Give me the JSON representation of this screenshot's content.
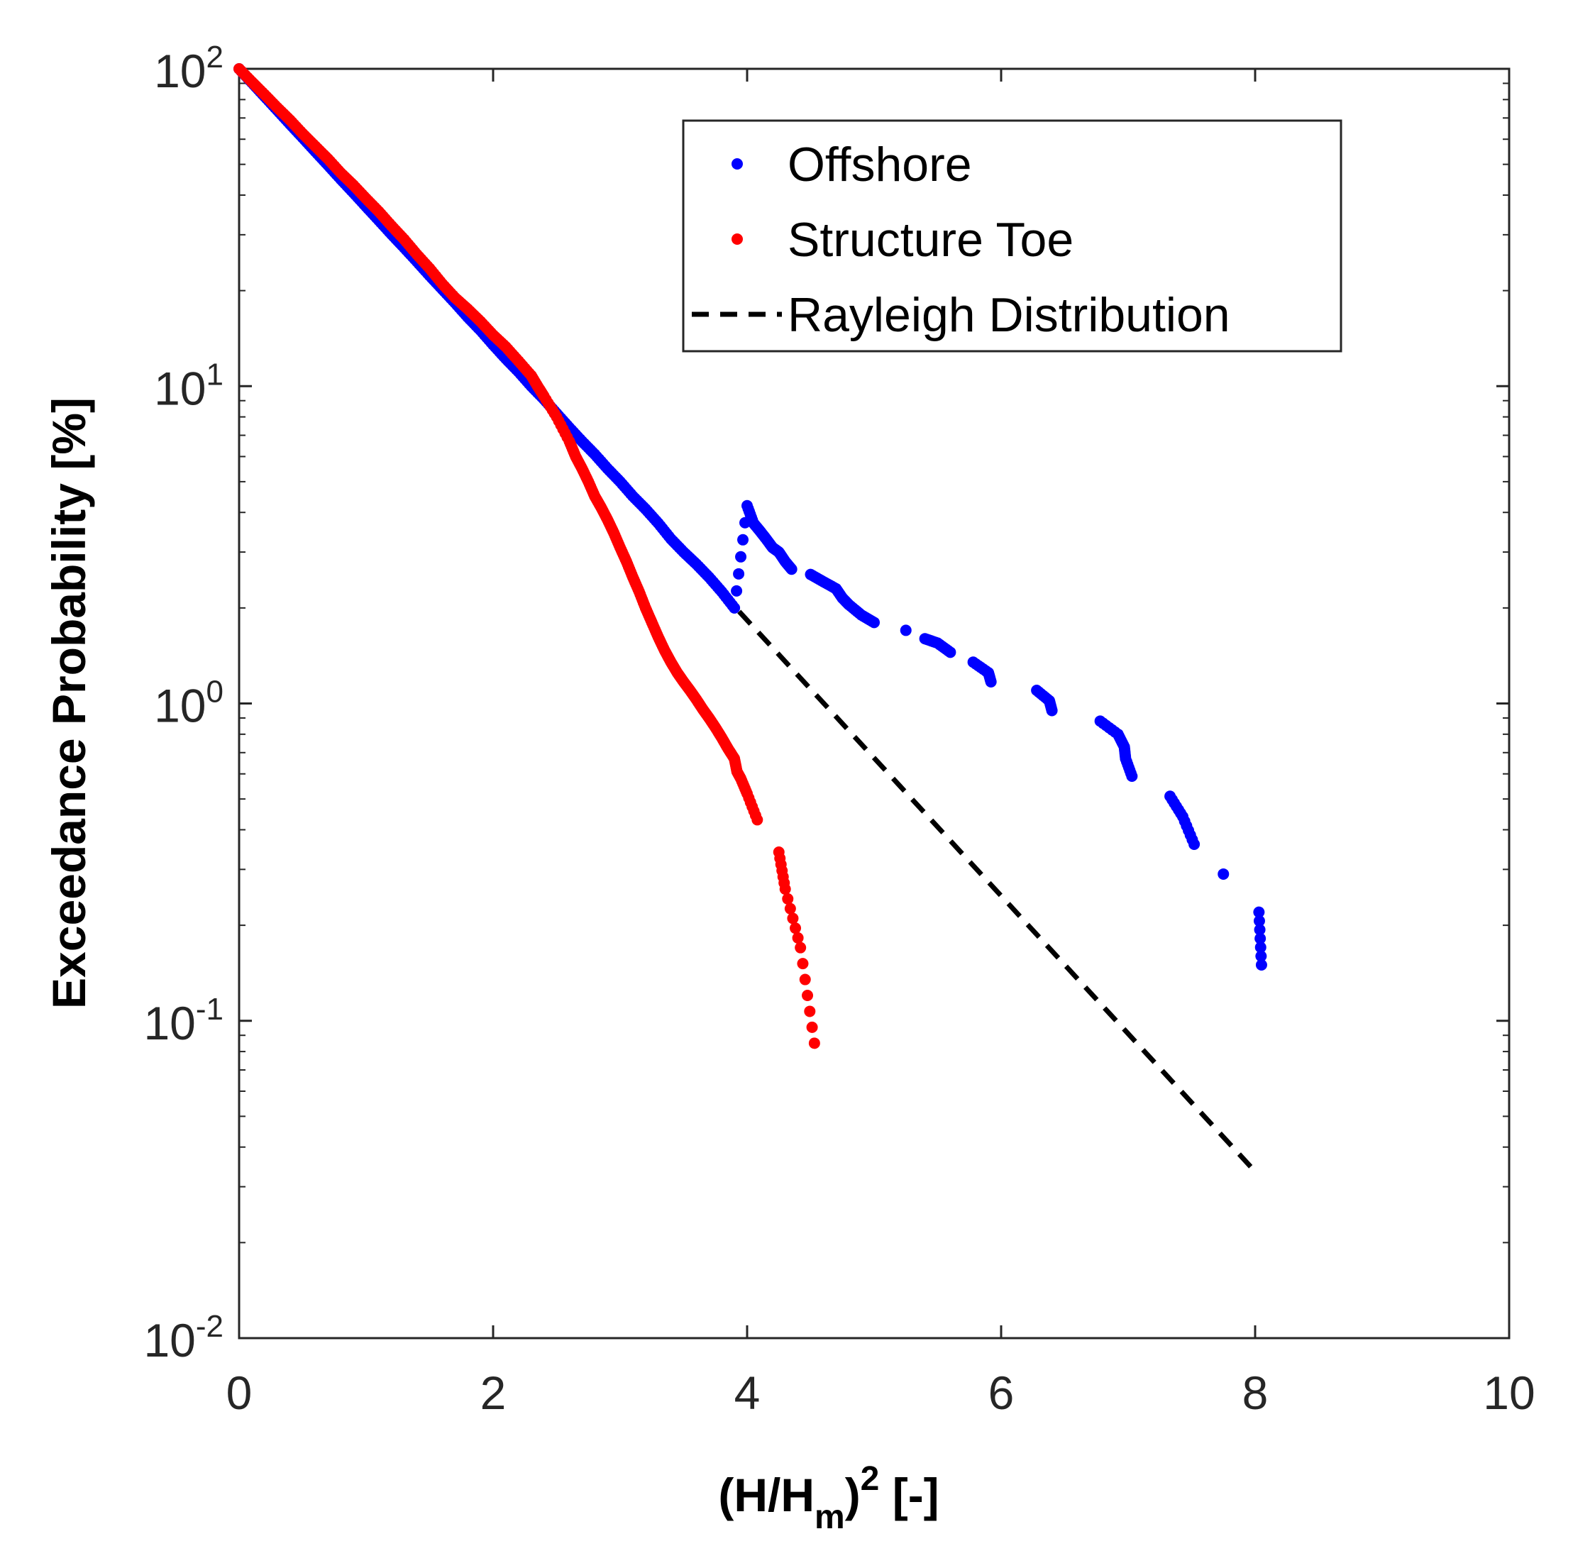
{
  "chart_data": {
    "type": "scatter",
    "title": "",
    "xlabel": {
      "main": "(H/H",
      "sub": "m",
      "close": ")",
      "sup": "2",
      "tail": " [-]"
    },
    "ylabel": "Exceedance Probability [%]",
    "xlim": [
      0,
      10
    ],
    "ylim": [
      0.01,
      100
    ],
    "yscale": "log",
    "x_ticks": [
      0,
      2,
      4,
      6,
      8,
      10
    ],
    "x_tick_labels": [
      "0",
      "2",
      "4",
      "6",
      "8",
      "10"
    ],
    "y_ticks": [
      0.01,
      0.1,
      1,
      10,
      100
    ],
    "y_tick_labels": [
      {
        "base": "10",
        "exp": "-2"
      },
      {
        "base": "10",
        "exp": "-1"
      },
      {
        "base": "10",
        "exp": "0"
      },
      {
        "base": "10",
        "exp": "1"
      },
      {
        "base": "10",
        "exp": "2"
      }
    ],
    "legend_position": "top-right",
    "series": [
      {
        "name": "Offshore",
        "style": "dots",
        "color": "#0000ff",
        "x": [
          0.0,
          0.1,
          0.2,
          0.3,
          0.4,
          0.5,
          0.6,
          0.7,
          0.8,
          0.9,
          1.0,
          1.1,
          1.2,
          1.3,
          1.4,
          1.5,
          1.6,
          1.7,
          1.8,
          1.9,
          2.0,
          2.1,
          2.2,
          2.3,
          2.4,
          2.5,
          2.6,
          2.7,
          2.8,
          2.9,
          3.0,
          3.1,
          3.2,
          3.3,
          3.4,
          3.5,
          3.6,
          3.7,
          3.8,
          3.9,
          4.0,
          4.05,
          4.1,
          4.15,
          4.2,
          4.25,
          4.3,
          4.35,
          4.5,
          4.6,
          4.7,
          4.75,
          4.8,
          4.9,
          5.0,
          5.25,
          5.4,
          5.5,
          5.6,
          5.78,
          5.9,
          5.92,
          6.28,
          6.38,
          6.4,
          6.78,
          6.92,
          6.97,
          6.98,
          7.03,
          7.33,
          7.43,
          7.52,
          7.75,
          8.03,
          8.05
        ],
        "y": [
          100,
          90.5,
          81.9,
          74.1,
          67.0,
          60.7,
          54.9,
          49.7,
          44.9,
          40.7,
          36.8,
          33.3,
          30.1,
          27.3,
          24.7,
          22.3,
          20.2,
          18.3,
          16.5,
          15.0,
          13.5,
          12.2,
          11.1,
          10.0,
          9.1,
          8.2,
          7.4,
          6.7,
          6.1,
          5.5,
          5.0,
          4.5,
          4.1,
          3.7,
          3.3,
          3.0,
          2.75,
          2.5,
          2.25,
          2.0,
          4.2,
          3.7,
          3.5,
          3.3,
          3.1,
          3.0,
          2.8,
          2.65,
          2.55,
          2.42,
          2.3,
          2.15,
          2.05,
          1.9,
          1.8,
          1.7,
          1.6,
          1.55,
          1.45,
          1.35,
          1.25,
          1.17,
          1.1,
          1.02,
          0.95,
          0.88,
          0.8,
          0.73,
          0.67,
          0.59,
          0.51,
          0.44,
          0.36,
          0.29,
          0.22,
          0.15
        ]
      },
      {
        "name": "Structure Toe",
        "style": "dots",
        "color": "#ff0000",
        "x": [
          0.0,
          0.1,
          0.2,
          0.3,
          0.4,
          0.5,
          0.6,
          0.7,
          0.8,
          0.9,
          1.0,
          1.1,
          1.2,
          1.3,
          1.4,
          1.5,
          1.6,
          1.7,
          1.8,
          1.9,
          2.0,
          2.1,
          2.2,
          2.3,
          2.35,
          2.4,
          2.5,
          2.6,
          2.65,
          2.7,
          2.75,
          2.8,
          2.85,
          2.9,
          2.95,
          3.0,
          3.05,
          3.1,
          3.15,
          3.2,
          3.25,
          3.3,
          3.35,
          3.4,
          3.45,
          3.5,
          3.55,
          3.6,
          3.65,
          3.7,
          3.75,
          3.8,
          3.85,
          3.9,
          3.92,
          3.95,
          4.0,
          4.08,
          4.25,
          4.3,
          4.42,
          4.53
        ],
        "y": [
          100,
          91,
          83,
          75.5,
          69,
          62.5,
          57,
          52,
          47,
          43,
          39,
          35.5,
          32,
          29,
          26,
          23.5,
          21,
          19,
          17.5,
          16,
          14.5,
          13.3,
          12.0,
          10.8,
          10.0,
          9.3,
          8.0,
          6.7,
          6.0,
          5.5,
          5.0,
          4.5,
          4.15,
          3.8,
          3.45,
          3.1,
          2.8,
          2.5,
          2.25,
          2.0,
          1.8,
          1.62,
          1.47,
          1.35,
          1.25,
          1.17,
          1.1,
          1.03,
          0.96,
          0.9,
          0.84,
          0.78,
          0.72,
          0.67,
          0.61,
          0.58,
          0.52,
          0.43,
          0.34,
          0.26,
          0.17,
          0.085
        ]
      },
      {
        "name": "Rayleigh Distribution",
        "style": "dashed-line",
        "color": "#000000",
        "x": [
          0,
          8.0
        ],
        "y": [
          100,
          0.0335
        ]
      }
    ]
  },
  "colors": {
    "offshore": "#0000ff",
    "structure_toe": "#ff0000",
    "rayleigh": "#000000",
    "axes": "#262626"
  }
}
